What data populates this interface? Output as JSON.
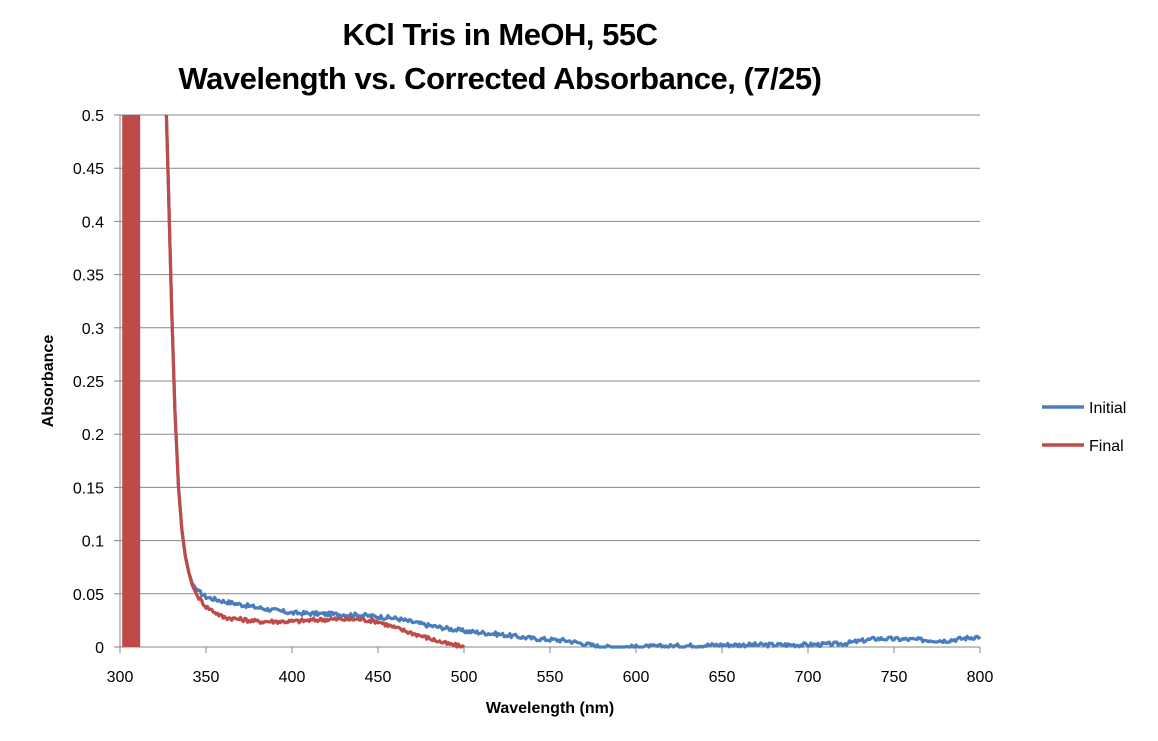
{
  "chart_data": {
    "type": "line",
    "title": "KCl Tris in MeOH, 55C",
    "subtitle": "Wavelength vs. Corrected Absorbance, (7/25)",
    "xlabel": "Wavelength (nm)",
    "ylabel": "Absorbance",
    "xlim": [
      300,
      800
    ],
    "ylim": [
      0,
      0.5
    ],
    "x_ticks": [
      "300",
      "350",
      "400",
      "450",
      "500",
      "550",
      "600",
      "650",
      "700",
      "750",
      "800"
    ],
    "y_ticks": [
      "0",
      "0.05",
      "0.1",
      "0.15",
      "0.2",
      "0.25",
      "0.3",
      "0.35",
      "0.4",
      "0.45",
      "0.5"
    ],
    "grid": "horizontal",
    "legend_position": "right",
    "series": [
      {
        "name": "Initial",
        "color": "#4a7ebb",
        "x": [
          327,
          328,
          330,
          332,
          334,
          336,
          338,
          340,
          342,
          345,
          350,
          360,
          380,
          400,
          420,
          440,
          460,
          480,
          500,
          520,
          540,
          560,
          570,
          580,
          600,
          650,
          700,
          720,
          740,
          760,
          780,
          800
        ],
        "y": [
          0.5,
          0.44,
          0.32,
          0.22,
          0.15,
          0.11,
          0.085,
          0.07,
          0.06,
          0.053,
          0.047,
          0.043,
          0.037,
          0.032,
          0.031,
          0.03,
          0.027,
          0.02,
          0.015,
          0.012,
          0.008,
          0.006,
          0.003,
          0.0,
          0.0,
          0.002,
          0.002,
          0.003,
          0.008,
          0.007,
          0.006,
          0.01
        ]
      },
      {
        "name": "Final",
        "color": "#be4b48",
        "spikes_x": [
          302,
          303,
          304,
          305,
          306,
          307,
          308,
          309,
          310,
          311
        ],
        "x": [
          327,
          328,
          330,
          332,
          334,
          336,
          338,
          340,
          342,
          345,
          350,
          360,
          380,
          400,
          420,
          440,
          450,
          460,
          470,
          480,
          490,
          500
        ],
        "y": [
          0.5,
          0.44,
          0.32,
          0.22,
          0.15,
          0.11,
          0.085,
          0.07,
          0.058,
          0.048,
          0.038,
          0.028,
          0.024,
          0.024,
          0.026,
          0.026,
          0.024,
          0.018,
          0.013,
          0.008,
          0.003,
          0.0
        ]
      }
    ]
  }
}
